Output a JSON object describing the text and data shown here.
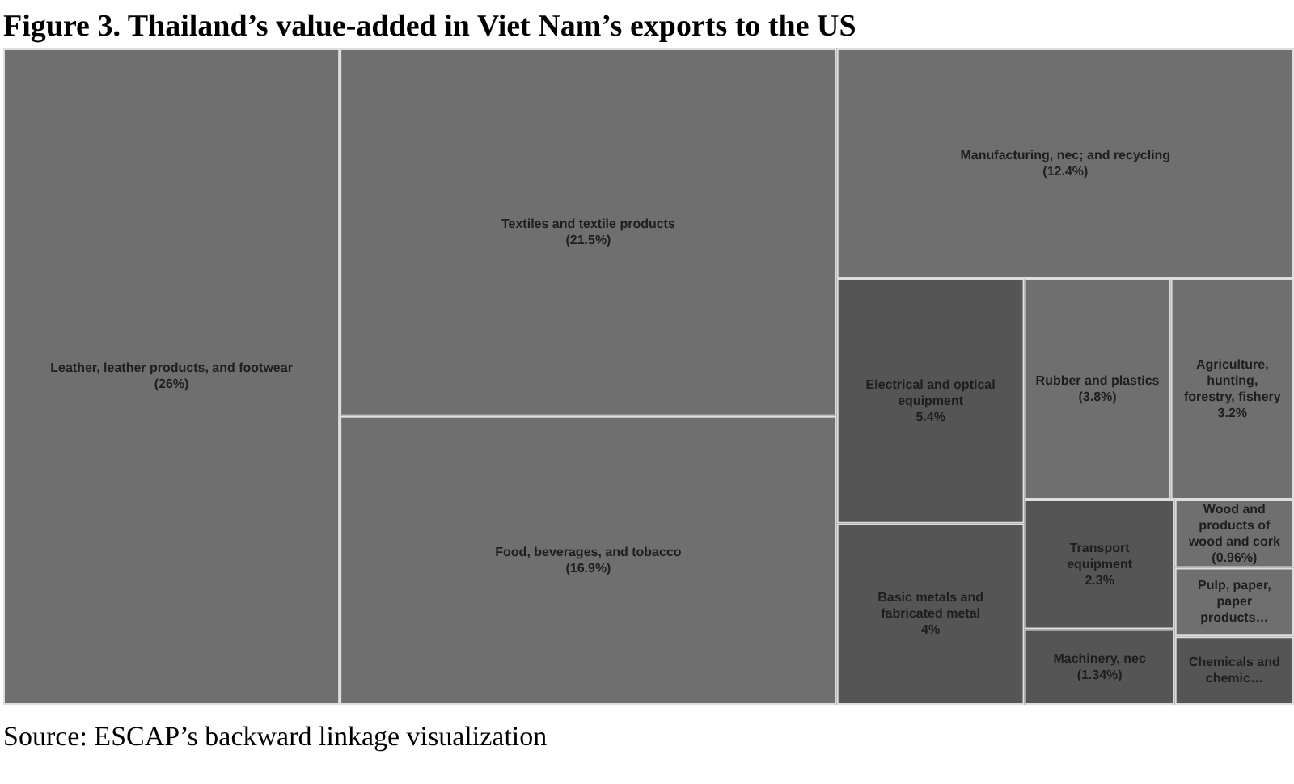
{
  "chart_data": {
    "type": "other",
    "title": "Figure 3. Thailand’s value-added in Viet Nam’s exports to the US",
    "categories": [
      "Leather, leather products, and footwear",
      "Textiles and textile products",
      "Food, beverages, and tobacco",
      "Manufacturing, nec; and recycling",
      "Electrical and optical equipment",
      "Basic metals and fabricated metal",
      "Rubber and plastics",
      "Agriculture, hunting, forestry, fishery",
      "Transport equipment",
      "Machinery, nec",
      "Wood and products of wood and cork",
      "Pulp, paper, paper products…",
      "Chemicals and chemic…"
    ],
    "values": [
      26,
      21.5,
      16.9,
      12.4,
      5.4,
      4,
      3.8,
      3.2,
      2.3,
      1.34,
      0.96,
      null,
      null
    ],
    "value_labels": [
      "(26%)",
      "(21.5%)",
      "(16.9%)",
      "(12.4%)",
      "5.4%",
      "4%",
      "(3.8%)",
      "3.2%",
      "2.3%",
      "(1.34%)",
      "(0.96%)",
      null,
      null
    ],
    "colors": [
      "#6f6f6f",
      "#6f6f6f",
      "#6f6f6f",
      "#6f6f6f",
      "#555555",
      "#555555",
      "#6f6f6f",
      "#6f6f6f",
      "#555555",
      "#555555",
      "#6f6f6f",
      "#6f6f6f",
      "#555555"
    ],
    "annotations": [
      "Source: ESCAP’s backward linkage visualization"
    ]
  }
}
